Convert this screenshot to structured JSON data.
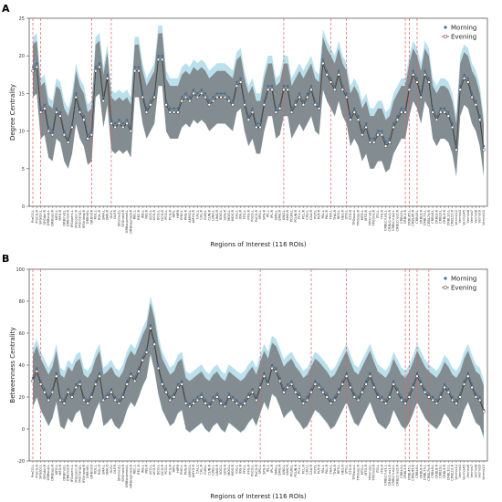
{
  "figure": {
    "panels": [
      "A",
      "B"
    ]
  },
  "roi_labels": [
    "PreCG.L",
    "PreCG.R",
    "SFGdor.L",
    "SFGdor.R",
    "ORBsup.L",
    "ORBsup.R",
    "MFG.L",
    "MFG.R",
    "ORBmid.L",
    "ORBmid.R",
    "IFGoperc.L",
    "IFGoperc.R",
    "IFGtriang.L",
    "IFGtriang.R",
    "ORBinf.L",
    "ORBinf.R",
    "ROL.L",
    "ROL.R",
    "SMA.L",
    "SMA.R",
    "OLF.L",
    "OLF.R",
    "SFGmed.L",
    "SFGmed.R",
    "ORBsupmed.L",
    "ORBsupmed.R",
    "REC.L",
    "REC.R",
    "INS.L",
    "INS.R",
    "ACG.L",
    "ACG.R",
    "DCG.L",
    "DCG.R",
    "PCG.L",
    "PCG.R",
    "HIP.L",
    "HIP.R",
    "PHG.L",
    "PHG.R",
    "AMYG.L",
    "AMYG.R",
    "CAL.L",
    "CAL.R",
    "CUN.L",
    "CUN.R",
    "LING.L",
    "LING.R",
    "SOG.L",
    "SOG.R",
    "MOG.L",
    "MOG.R",
    "IOG.L",
    "IOG.R",
    "FFG.L",
    "FFG.R",
    "PoCG.L",
    "PoCG.R",
    "SPG.L",
    "SPG.R",
    "IPL.L",
    "IPL.R",
    "SMG.L",
    "SMG.R",
    "ANG.L",
    "ANG.R",
    "PCUN.L",
    "PCUN.R",
    "PCL.L",
    "PCL.R",
    "CAU.L",
    "CAU.R",
    "PUT.L",
    "PUT.R",
    "PAL.L",
    "PAL.R",
    "THA.L",
    "THA.R",
    "HES.L",
    "HES.R",
    "STG.L",
    "STG.R",
    "TPOsup.L",
    "TPOsup.R",
    "MTG.L",
    "MTG.R",
    "TPOmid.L",
    "TPOmid.R",
    "ITG.L",
    "ITG.R",
    "CRBLCrus1.L",
    "CRBLCrus1.R",
    "CRBLCrus2.L",
    "CRBLCrus2.R",
    "CRBL3.L",
    "CRBL3.R",
    "CRBL45.L",
    "CRBL45.R",
    "CRBL6.L",
    "CRBL6.R",
    "CRBL7b.L",
    "CRBL7b.R",
    "CRBL8.L",
    "CRBL8.R",
    "CRBL9.L",
    "CRBL9.R",
    "CRBL10.L",
    "CRBL10.R",
    "Vermis12",
    "Vermis3",
    "Vermis45",
    "Vermis6",
    "Vermis7",
    "Vermis8",
    "Vermis9",
    "Vermis10"
  ],
  "colors": {
    "morning": "#3a6ea5",
    "evening": "#8b4a4a",
    "band_morning": "#a9d8e8",
    "band_evening": "#707070",
    "marker_line": "#e06060"
  },
  "chart_data": [
    {
      "type": "line",
      "panel": "A",
      "ylabel": "Degree Centrality",
      "xlabel": "Regions of Interest (116 ROIs)",
      "ylim": [
        0,
        25
      ],
      "yticks": [
        0,
        5,
        10,
        15,
        20,
        25
      ],
      "legend": {
        "placement": "top-right",
        "entries": [
          "Morning",
          "Evening"
        ]
      },
      "marker_rois": [
        0,
        4,
        28,
        33,
        111,
        144,
        155,
        196,
        199,
        204
      ],
      "marker_indices": [
        0,
        2,
        15,
        20,
        64,
        76,
        80,
        95,
        96,
        98
      ],
      "series": [
        {
          "name": "Morning",
          "sd": 3.5,
          "values": [
            18.5,
            19,
            13,
            13.5,
            10.5,
            10,
            13,
            12.5,
            10,
            9,
            11,
            15,
            13,
            12,
            9.5,
            10,
            18.5,
            19,
            14.5,
            17.5,
            11.5,
            11,
            11.5,
            11,
            11.5,
            10.5,
            18.5,
            18.5,
            15,
            13,
            14,
            15,
            20,
            20,
            14,
            13,
            13,
            13,
            14.5,
            15,
            14.5,
            15.5,
            15,
            15.5,
            15,
            14,
            14.5,
            15,
            15,
            15,
            14.5,
            14,
            16.5,
            17,
            14,
            12,
            13,
            11,
            11,
            14,
            16,
            16,
            13,
            13.5,
            16,
            16,
            13,
            14,
            15,
            14,
            15,
            16,
            14,
            13.5,
            19.5,
            18,
            17,
            16,
            18,
            16,
            15,
            12,
            13,
            12,
            10,
            11,
            9,
            9,
            10,
            10,
            8.5,
            9,
            11,
            12,
            13,
            13,
            16,
            18,
            17,
            15,
            18,
            17,
            13,
            12,
            13,
            13,
            12.5,
            11,
            8,
            16,
            17.5,
            17,
            15,
            14,
            12,
            8
          ]
        },
        {
          "name": "Evening",
          "sd": 3.5,
          "values": [
            18,
            18.5,
            12.5,
            13,
            10,
            9.5,
            12.5,
            12,
            9.5,
            8.5,
            10.5,
            14.5,
            12.5,
            11.5,
            9,
            9.5,
            18,
            18.5,
            14,
            17,
            11,
            10.5,
            11,
            10.5,
            11,
            10,
            18,
            18,
            14.5,
            12.5,
            13.5,
            14.5,
            19.5,
            19.5,
            13.5,
            12.5,
            12.5,
            12.5,
            14,
            14.5,
            14,
            15,
            14.5,
            15,
            14.5,
            13.5,
            14,
            14.5,
            14.5,
            14.5,
            14,
            13.5,
            16,
            16.5,
            13.5,
            11.5,
            12.5,
            10.5,
            10.5,
            13.5,
            15.5,
            15.5,
            12.5,
            13,
            15.5,
            15.5,
            12.5,
            13.5,
            14.5,
            13.5,
            14.5,
            15.5,
            13.5,
            13,
            19,
            17.5,
            16.5,
            15.5,
            17.5,
            15.5,
            14.5,
            11.5,
            12.5,
            11.5,
            9.5,
            10.5,
            8.5,
            8.5,
            9.5,
            9.5,
            8,
            8.5,
            10.5,
            11.5,
            12.5,
            12.5,
            15.5,
            17.5,
            16.5,
            14.5,
            17.5,
            16.5,
            12.5,
            11.5,
            12.5,
            12.5,
            12,
            10.5,
            7.5,
            15.5,
            17,
            16.5,
            14.5,
            13.5,
            11.5,
            7.5
          ]
        }
      ]
    },
    {
      "type": "line",
      "panel": "B",
      "ylabel": "Betweenness Centrality",
      "xlabel": "Regions of Interest (116 ROIs)",
      "ylim": [
        -20,
        100
      ],
      "yticks": [
        -20,
        0,
        20,
        40,
        60,
        80,
        100
      ],
      "legend": {
        "placement": "top-right",
        "entries": [
          "Morning",
          "Evening"
        ]
      },
      "marker_indices": [
        0,
        2,
        58,
        71,
        80,
        95,
        96,
        98,
        101
      ],
      "series": [
        {
          "name": "Morning",
          "sd": 16,
          "values": [
            32,
            38,
            30,
            25,
            20,
            25,
            35,
            20,
            18,
            25,
            22,
            28,
            30,
            20,
            18,
            22,
            30,
            35,
            20,
            22,
            25,
            20,
            18,
            22,
            30,
            35,
            32,
            38,
            45,
            50,
            65,
            55,
            40,
            30,
            25,
            20,
            22,
            28,
            30,
            18,
            16,
            18,
            20,
            22,
            18,
            16,
            20,
            22,
            18,
            16,
            22,
            20,
            18,
            16,
            18,
            22,
            25,
            20,
            28,
            35,
            30,
            40,
            38,
            32,
            25,
            28,
            30,
            25,
            22,
            18,
            20,
            25,
            30,
            28,
            25,
            22,
            18,
            20,
            25,
            30,
            35,
            28,
            22,
            20,
            25,
            30,
            35,
            28,
            22,
            20,
            18,
            22,
            30,
            25,
            20,
            18,
            22,
            28,
            35,
            30,
            25,
            22,
            20,
            18,
            22,
            28,
            25,
            20,
            18,
            22,
            30,
            35,
            28,
            22,
            20,
            12
          ]
        },
        {
          "name": "Evening",
          "sd": 16,
          "values": [
            30,
            36,
            28,
            23,
            18,
            23,
            33,
            18,
            16,
            23,
            20,
            26,
            28,
            18,
            16,
            20,
            28,
            33,
            18,
            20,
            23,
            18,
            16,
            20,
            28,
            33,
            30,
            36,
            43,
            48,
            63,
            53,
            38,
            28,
            23,
            18,
            20,
            26,
            28,
            16,
            14,
            16,
            18,
            20,
            16,
            14,
            18,
            20,
            16,
            14,
            20,
            18,
            16,
            14,
            16,
            20,
            23,
            18,
            26,
            33,
            28,
            38,
            36,
            30,
            23,
            26,
            28,
            23,
            20,
            16,
            18,
            23,
            28,
            26,
            23,
            20,
            16,
            18,
            23,
            28,
            33,
            26,
            20,
            18,
            23,
            28,
            33,
            26,
            20,
            18,
            16,
            20,
            28,
            23,
            18,
            16,
            20,
            26,
            33,
            28,
            23,
            20,
            18,
            16,
            20,
            26,
            23,
            18,
            16,
            20,
            28,
            33,
            26,
            20,
            18,
            11
          ]
        }
      ]
    }
  ]
}
